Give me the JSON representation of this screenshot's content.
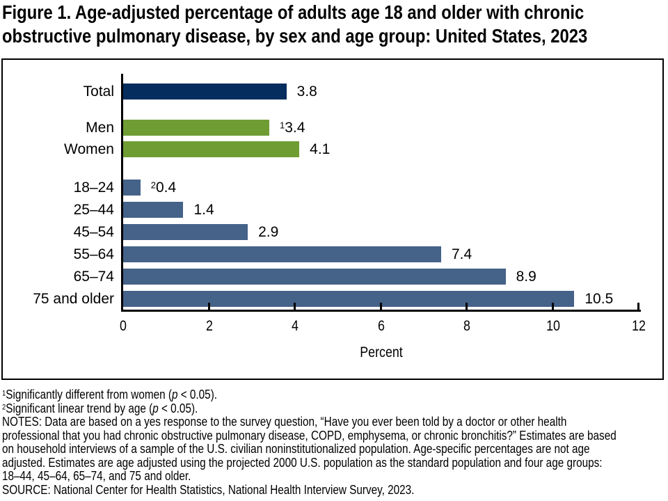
{
  "title": {
    "line1": "Figure 1. Age-adjusted percentage of adults age 18 and older with chronic",
    "line2": "obstructive pulmonary disease, by sex and age group: United States, 2023"
  },
  "chart_data": {
    "type": "bar",
    "orientation": "horizontal",
    "xlabel": "Percent",
    "xlim": [
      0,
      12
    ],
    "xticks": [
      0,
      2,
      4,
      6,
      8,
      10,
      12
    ],
    "grid": false,
    "categories": [
      "Total",
      "Men",
      "Women",
      "18–24",
      "25–44",
      "45–54",
      "55–64",
      "65–74",
      "75 and older"
    ],
    "values": [
      3.8,
      3.4,
      4.1,
      0.4,
      1.4,
      2.9,
      7.4,
      8.9,
      10.5
    ],
    "colors": {
      "total": "#052d5e",
      "sex": "#6f9d34",
      "age": "#456288"
    },
    "bars": [
      {
        "label": "Total",
        "value": 3.8,
        "display": "3.8",
        "sup": "",
        "color": "#052d5e",
        "group": "total"
      },
      {
        "label": "Men",
        "value": 3.4,
        "display": "3.4",
        "sup": "1",
        "color": "#6f9d34",
        "group": "sex"
      },
      {
        "label": "Women",
        "value": 4.1,
        "display": "4.1",
        "sup": "",
        "color": "#6f9d34",
        "group": "sex"
      },
      {
        "label": "18–24",
        "value": 0.4,
        "display": "0.4",
        "sup": "2",
        "color": "#456288",
        "group": "age"
      },
      {
        "label": "25–44",
        "value": 1.4,
        "display": "1.4",
        "sup": "",
        "color": "#456288",
        "group": "age"
      },
      {
        "label": "45–54",
        "value": 2.9,
        "display": "2.9",
        "sup": "",
        "color": "#456288",
        "group": "age"
      },
      {
        "label": "55–64",
        "value": 7.4,
        "display": "7.4",
        "sup": "",
        "color": "#456288",
        "group": "age"
      },
      {
        "label": "65–74",
        "value": 8.9,
        "display": "8.9",
        "sup": "",
        "color": "#456288",
        "group": "age"
      },
      {
        "label": "75 and older",
        "value": 10.5,
        "display": "10.5",
        "sup": "",
        "color": "#456288",
        "group": "age"
      }
    ]
  },
  "footnotes": [
    {
      "sup": "1",
      "pre": "Significantly different from women (",
      "p_var": "p",
      "post": " < 0.05)."
    },
    {
      "sup": "2",
      "pre": "Significant linear trend by age (",
      "p_var": "p",
      "post": " < 0.05)."
    }
  ],
  "notes_lines": [
    "NOTES: Data are based on a yes response to the survey question, “Have you ever been told by a doctor or other health",
    "professional that you had chronic obstructive pulmonary disease, COPD, emphysema, or chronic bronchitis?” Estimates are based",
    "on household interviews of a sample of the U.S. civilian noninstitutionalized population. Age-specific percentages are not age",
    "adjusted. Estimates are age adjusted using the projected 2000 U.S. population as the standard population and four age groups:",
    "18–44, 45–64, 65–74, and 75 and older."
  ],
  "source": "SOURCE: National Center for Health Statistics, National Health Interview Survey, 2023."
}
